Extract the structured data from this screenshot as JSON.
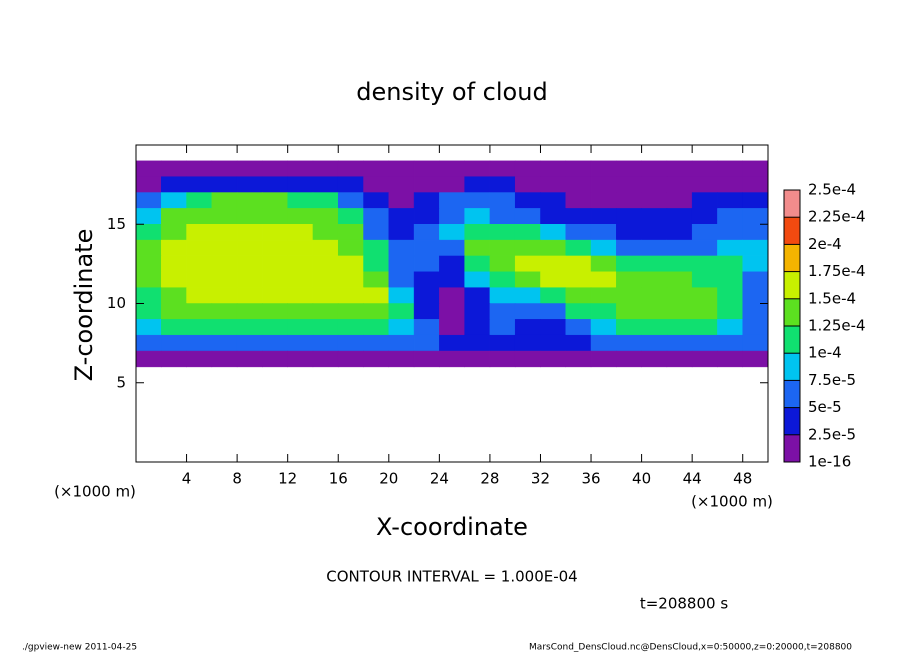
{
  "chart_data": {
    "type": "heatmap",
    "title": "density of cloud",
    "x_label": "X-coordinate",
    "y_label": "Z-coordinate",
    "x_unit": "(×1000 m)",
    "y_unit": "(×1000 m)",
    "xlim": [
      0,
      50
    ],
    "ylim": [
      0,
      20
    ],
    "xticks": [
      4,
      8,
      12,
      16,
      20,
      24,
      28,
      32,
      36,
      40,
      44,
      48
    ],
    "yticks": [
      5,
      10,
      15
    ],
    "x": [
      1,
      3,
      5,
      7,
      9,
      11,
      13,
      15,
      17,
      19,
      21,
      23,
      25,
      27,
      29,
      31,
      33,
      35,
      37,
      39,
      41,
      43,
      45,
      47,
      49
    ],
    "y": [
      18.5,
      17.5,
      16.5,
      15.5,
      14.5,
      13.5,
      12.5,
      11.5,
      10.5,
      9.5,
      8.5,
      7.5,
      6.5
    ],
    "z": [
      [
        1e-05,
        1e-05,
        1e-05,
        1e-05,
        1e-05,
        1e-05,
        1e-05,
        1e-05,
        1e-05,
        1e-05,
        1e-05,
        1e-05,
        1e-05,
        1e-05,
        1e-05,
        1e-05,
        1e-05,
        1e-05,
        1e-05,
        1e-05,
        1e-05,
        1e-05,
        1e-05,
        1e-05,
        1e-05
      ],
      [
        2e-05,
        3e-05,
        4e-05,
        4e-05,
        4e-05,
        4e-05,
        3e-05,
        3e-05,
        3e-05,
        2e-05,
        2e-05,
        2e-05,
        2e-05,
        3e-05,
        3e-05,
        2e-05,
        2e-05,
        2e-05,
        1e-05,
        1e-05,
        1e-05,
        1e-05,
        1e-05,
        2e-05,
        2e-05
      ],
      [
        5e-05,
        8e-05,
        0.00012,
        0.00013,
        0.00013,
        0.00013,
        0.00012,
        0.0001,
        6e-05,
        3e-05,
        2e-05,
        3e-05,
        5e-05,
        6e-05,
        5e-05,
        3e-05,
        3e-05,
        2e-05,
        2e-05,
        2e-05,
        2e-05,
        2e-05,
        3e-05,
        4e-05,
        4e-05
      ],
      [
        9e-05,
        0.00013,
        0.00014,
        0.00014,
        0.00014,
        0.00014,
        0.00014,
        0.00013,
        0.00011,
        5e-05,
        3e-05,
        4e-05,
        7e-05,
        8e-05,
        7e-05,
        5e-05,
        4e-05,
        3e-05,
        3e-05,
        3e-05,
        3e-05,
        3e-05,
        4e-05,
        6e-05,
        5e-05
      ],
      [
        0.00012,
        0.00014,
        0.00015,
        0.00015,
        0.00015,
        0.00015,
        0.00015,
        0.00014,
        0.00013,
        7e-05,
        4e-05,
        5e-05,
        9e-05,
        0.00012,
        0.00012,
        0.00011,
        9e-05,
        6e-05,
        5e-05,
        4e-05,
        4e-05,
        4e-05,
        5e-05,
        7e-05,
        6e-05
      ],
      [
        0.00013,
        0.00015,
        0.00016,
        0.00016,
        0.00016,
        0.00016,
        0.00016,
        0.00015,
        0.00014,
        0.0001,
        5e-05,
        5e-05,
        7e-05,
        0.00013,
        0.00014,
        0.00014,
        0.00013,
        0.00012,
        9e-05,
        7e-05,
        6e-05,
        6e-05,
        7e-05,
        9e-05,
        8e-05
      ],
      [
        0.00013,
        0.00015,
        0.00016,
        0.00016,
        0.00016,
        0.00016,
        0.00016,
        0.00016,
        0.00015,
        0.00012,
        6e-05,
        5e-05,
        4e-05,
        0.00012,
        0.00014,
        0.00015,
        0.00016,
        0.00015,
        0.00014,
        0.00012,
        0.00011,
        0.0001,
        0.0001,
        0.00011,
        8e-05
      ],
      [
        0.00013,
        0.00015,
        0.00015,
        0.00016,
        0.00016,
        0.00016,
        0.00016,
        0.00016,
        0.00015,
        0.00014,
        7e-05,
        4e-05,
        3e-05,
        8e-05,
        0.00012,
        0.00013,
        0.00015,
        0.00015,
        0.00015,
        0.00014,
        0.00013,
        0.00013,
        0.00012,
        0.00012,
        7e-05
      ],
      [
        0.00012,
        0.00014,
        0.00015,
        0.00015,
        0.00015,
        0.00015,
        0.00015,
        0.00015,
        0.00015,
        0.00015,
        8e-05,
        3e-05,
        2e-05,
        4e-05,
        8e-05,
        9e-05,
        0.00011,
        0.00013,
        0.00014,
        0.00014,
        0.00014,
        0.00013,
        0.00013,
        0.00012,
        6e-05
      ],
      [
        0.00012,
        0.00013,
        0.00014,
        0.00014,
        0.00014,
        0.00014,
        0.00014,
        0.00014,
        0.00014,
        0.00014,
        0.0001,
        3e-05,
        2e-05,
        3e-05,
        6e-05,
        6e-05,
        6e-05,
        0.0001,
        0.00012,
        0.00013,
        0.00013,
        0.00013,
        0.00013,
        0.00012,
        6e-05
      ],
      [
        9e-05,
        0.0001,
        0.0001,
        0.0001,
        0.0001,
        0.0001,
        0.0001,
        0.0001,
        0.0001,
        0.0001,
        9e-05,
        5e-05,
        2e-05,
        3e-05,
        5e-05,
        4e-05,
        4e-05,
        5e-05,
        8e-05,
        0.0001,
        0.0001,
        0.0001,
        0.0001,
        9e-05,
        6e-05
      ],
      [
        6e-05,
        6e-05,
        6e-05,
        6e-05,
        6e-05,
        6e-05,
        6e-05,
        6e-05,
        6e-05,
        6e-05,
        6e-05,
        5e-05,
        3e-05,
        3e-05,
        4e-05,
        4e-05,
        3e-05,
        4e-05,
        5e-05,
        6e-05,
        6e-05,
        6e-05,
        6e-05,
        6e-05,
        5e-05
      ],
      [
        2e-05,
        2e-05,
        2e-05,
        2e-05,
        2e-05,
        2e-05,
        2e-05,
        2e-05,
        2e-05,
        2e-05,
        2e-05,
        2e-05,
        1e-05,
        1e-05,
        1e-05,
        1e-05,
        1e-05,
        1e-05,
        2e-05,
        2e-05,
        2e-05,
        2e-05,
        2e-05,
        2e-05,
        2e-05
      ]
    ],
    "levels": [
      {
        "value": 1e-16,
        "label": "1e-16"
      },
      {
        "value": 2.5e-05,
        "label": "2.5e-5"
      },
      {
        "value": 5e-05,
        "label": "5e-5"
      },
      {
        "value": 7.5e-05,
        "label": "7.5e-5"
      },
      {
        "value": 0.0001,
        "label": "1e-4"
      },
      {
        "value": 0.000125,
        "label": "1.25e-4"
      },
      {
        "value": 0.00015,
        "label": "1.5e-4"
      },
      {
        "value": 0.000175,
        "label": "1.75e-4"
      },
      {
        "value": 0.0002,
        "label": "2e-4"
      },
      {
        "value": 0.000225,
        "label": "2.25e-4"
      },
      {
        "value": 0.00025,
        "label": "2.5e-4"
      }
    ],
    "colors": [
      "#7c10a6",
      "#0c18d8",
      "#1c66f2",
      "#00c4f0",
      "#10e070",
      "#5ce020",
      "#c8f000",
      "#f4b400",
      "#f24a10",
      "#f28c8c"
    ],
    "contour_interval": "CONTOUR INTERVAL = 1.000E-04",
    "time_label": "t=208800 s",
    "footer_left": "./gpview-new  2011-04-25",
    "footer_right": "MarsCond_DensCloud.nc@DensCloud,x=0:50000,z=0:20000,t=208800"
  }
}
